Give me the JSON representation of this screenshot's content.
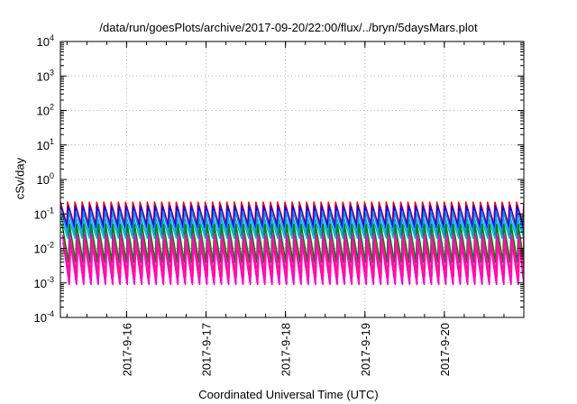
{
  "chart_data": {
    "type": "line",
    "title": "/data/run/goesPlots/archive/2017-09-20/22:00/flux/../bryn/5daysMars.plot",
    "xlabel": "Coordinated Universal Time (UTC)",
    "ylabel": "cSv/day",
    "y_scale": "log",
    "ylim": [
      0.0001,
      10000
    ],
    "xlim": [
      "2017-09-15 04:00",
      "2017-09-21 00:00"
    ],
    "x_ticks": [
      "2017-9-16",
      "2017-9-17",
      "2017-9-18",
      "2017-9-19",
      "2017-9-20"
    ],
    "y_ticks": [
      {
        "base": "10",
        "exp": "4"
      },
      {
        "base": "10",
        "exp": "3"
      },
      {
        "base": "10",
        "exp": "2"
      },
      {
        "base": "10",
        "exp": "1"
      },
      {
        "base": "10",
        "exp": "0"
      },
      {
        "base": "10",
        "exp": "-1"
      },
      {
        "base": "10",
        "exp": "-2"
      },
      {
        "base": "10",
        "exp": "-3"
      },
      {
        "base": "10",
        "exp": "-4"
      }
    ],
    "grid": true,
    "legend": "none",
    "pattern": {
      "kind": "sawtooth",
      "teeth_per_day": 11,
      "days": 5.83,
      "note_series_min_max": "each series oscillates between min and max"
    },
    "series": [
      {
        "color": "#ff0000",
        "min": 0.05,
        "max": 0.22
      },
      {
        "color": "#0000ff",
        "min": 0.04,
        "max": 0.17
      },
      {
        "color": "#00bcd4",
        "min": 0.02,
        "max": 0.08
      },
      {
        "color": "#1e88e5",
        "min": 0.025,
        "max": 0.12
      },
      {
        "color": "#008000",
        "min": 0.004,
        "max": 0.05
      },
      {
        "color": "#ff00ff",
        "min": 0.001,
        "max": 0.025
      },
      {
        "color": "#ff00cc",
        "min": 0.0009,
        "max": 0.015
      },
      {
        "color": "#ff1493",
        "min": 0.0015,
        "max": 0.018
      }
    ]
  }
}
